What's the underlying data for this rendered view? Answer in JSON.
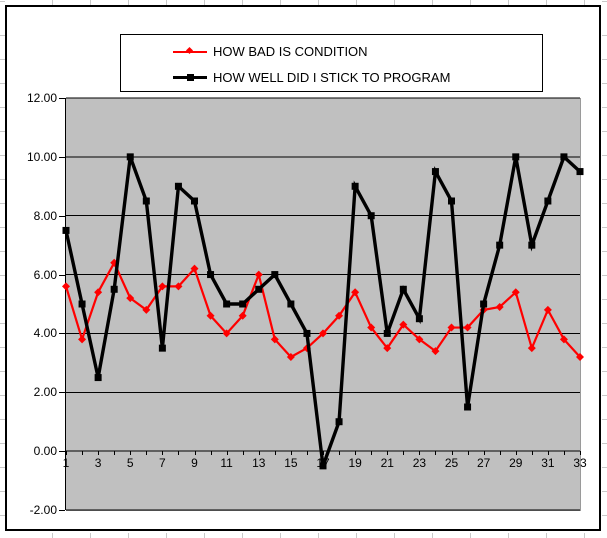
{
  "chart_data": {
    "type": "line",
    "title": "",
    "categories": [
      1,
      2,
      3,
      4,
      5,
      6,
      7,
      8,
      9,
      10,
      11,
      12,
      13,
      14,
      15,
      16,
      17,
      18,
      19,
      20,
      21,
      22,
      23,
      24,
      25,
      26,
      27,
      28,
      29,
      30,
      31,
      32,
      33
    ],
    "series": [
      {
        "name": "HOW BAD IS CONDITION",
        "color": "#ff0000",
        "marker": "diamond",
        "line_width": 2.2,
        "values": [
          5.6,
          3.8,
          5.4,
          6.4,
          5.2,
          4.8,
          5.6,
          5.6,
          6.2,
          4.6,
          4.0,
          4.6,
          6.0,
          3.8,
          3.2,
          3.5,
          4.0,
          4.6,
          5.4,
          4.2,
          3.5,
          4.3,
          3.8,
          3.4,
          4.2,
          4.2,
          4.8,
          4.9,
          5.4,
          3.5,
          4.8,
          3.8,
          3.2
        ]
      },
      {
        "name": "HOW WELL DID I STICK TO PROGRAM",
        "color": "#000000",
        "marker": "square",
        "line_width": 3.4,
        "values": [
          7.5,
          5.0,
          2.5,
          5.5,
          10.0,
          8.5,
          3.5,
          9.0,
          8.5,
          6.0,
          5.0,
          5.0,
          5.5,
          6.0,
          5.0,
          4.0,
          -0.5,
          1.0,
          9.0,
          8.0,
          4.0,
          5.5,
          4.5,
          9.5,
          8.5,
          1.5,
          5.0,
          7.0,
          10.0,
          7.0,
          8.5,
          10.0,
          9.5
        ]
      }
    ],
    "ylim": [
      -2.0,
      12.0
    ],
    "y_ticks": [
      "12.00",
      "10.00",
      "8.00",
      "6.00",
      "4.00",
      "2.00",
      "0.00",
      "-2.00"
    ],
    "x_tick_labels": [
      "1",
      "3",
      "5",
      "7",
      "9",
      "11",
      "13",
      "15",
      "17",
      "19",
      "21",
      "23",
      "25",
      "27",
      "29",
      "31",
      "33"
    ],
    "grid": true,
    "legend_position": "top-center",
    "plot_bg": "#c0c0c0",
    "gridline_color": "#000000",
    "category_axis_value": 0.0
  }
}
